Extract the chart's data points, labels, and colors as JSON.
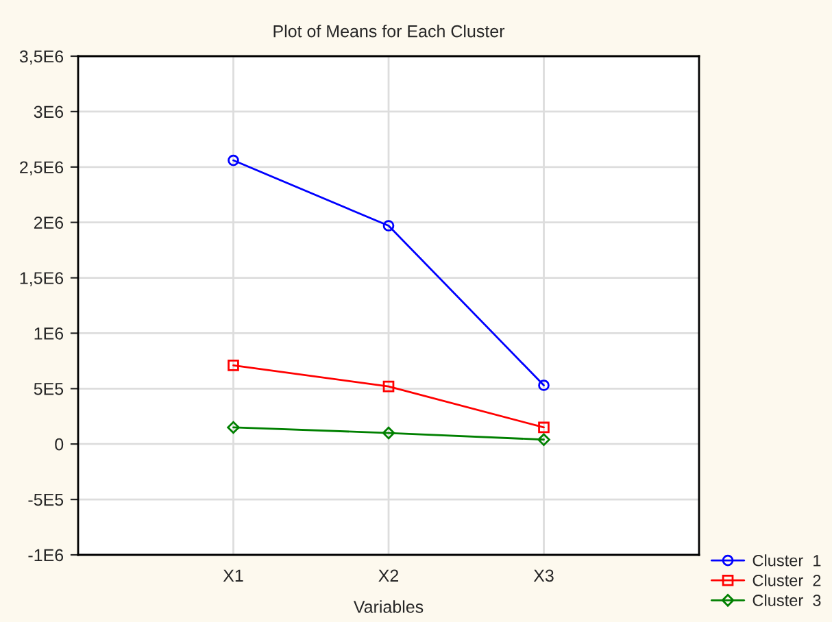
{
  "chart_data": {
    "type": "line",
    "title": "Plot of Means for Each Cluster",
    "xlabel": "Variables",
    "categories": [
      "X1",
      "X2",
      "X3"
    ],
    "series": [
      {
        "name": "Cluster  1",
        "color": "#0000ff",
        "values": [
          2560000,
          1970000,
          530000
        ],
        "marker": "circle"
      },
      {
        "name": "Cluster  2",
        "color": "#ff0000",
        "values": [
          710000,
          520000,
          150000
        ],
        "marker": "square"
      },
      {
        "name": "Cluster  3",
        "color": "#008000",
        "values": [
          150000,
          100000,
          40000
        ],
        "marker": "diamond"
      }
    ],
    "ylim": [
      -1000000,
      3500000
    ],
    "yticks": [
      {
        "value": -1000000,
        "label": "-1E6"
      },
      {
        "value": -500000,
        "label": "-5E5"
      },
      0,
      {
        "value": 500000,
        "label": "5E5"
      },
      {
        "value": 1000000,
        "label": "1E6"
      },
      {
        "value": 1500000,
        "label": "1,5E6"
      },
      {
        "value": 2000000,
        "label": "2E6"
      },
      {
        "value": 2500000,
        "label": "2,5E6"
      },
      {
        "value": 3000000,
        "label": "3E6"
      },
      {
        "value": 3500000,
        "label": "3,5E6"
      }
    ],
    "grid": true,
    "legend": "bottom right",
    "line_style": "solid"
  }
}
